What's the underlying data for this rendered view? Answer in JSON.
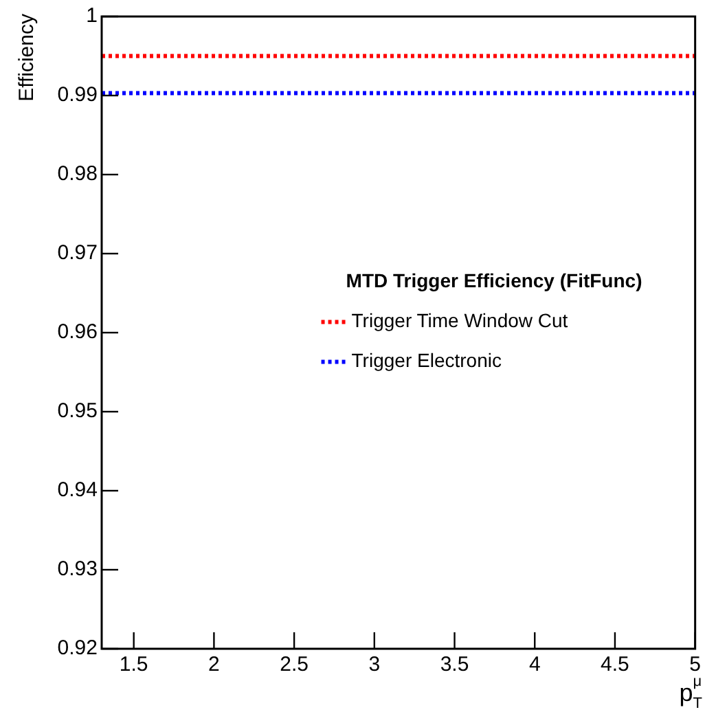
{
  "chart_data": {
    "type": "line",
    "xlabel": "p$_{T}$$^{μ}$",
    "ylabel": "Efficiency",
    "legend_title": "MTD Trigger Efficiency (FitFunc)",
    "x": [
      1.3,
      5
    ],
    "series": [
      {
        "name": "Trigger Time Window Cut",
        "color": "#ff0000",
        "values": [
          0.995,
          0.995
        ]
      },
      {
        "name": "Trigger Electronic",
        "color": "#0000ff",
        "values": [
          0.9903,
          0.9903
        ]
      }
    ],
    "xlim": [
      1.3,
      5
    ],
    "xticks": [
      1.5,
      2,
      2.5,
      3,
      3.5,
      4,
      4.5,
      5
    ],
    "ylim": [
      0.92,
      1
    ],
    "yticks": [
      0.92,
      0.93,
      0.94,
      0.95,
      0.96,
      0.97,
      0.98,
      0.99,
      1
    ],
    "grid": false,
    "legend": "right",
    "marker": "none",
    "line_style": "dotted"
  }
}
